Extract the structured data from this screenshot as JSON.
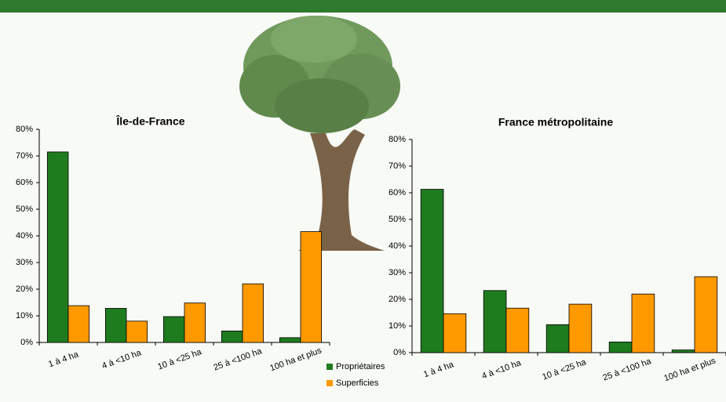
{
  "chart_data": [
    {
      "type": "bar",
      "title": "Île-de-France",
      "categories": [
        "1 à 4 ha",
        "4 à <10 ha",
        "10 à <25 ha",
        "25 à <100 ha",
        "100 ha et plus"
      ],
      "series": [
        {
          "name": "Propriétaires",
          "color": "#1e7b1e",
          "values": [
            71.5,
            12.8,
            9.7,
            4.3,
            1.8
          ]
        },
        {
          "name": "Superficies",
          "color": "#ff9900",
          "values": [
            13.8,
            8.0,
            14.8,
            22.0,
            41.6
          ]
        }
      ],
      "ylim": [
        0,
        80
      ],
      "yticks": [
        {
          "value": 0,
          "label": "0%"
        },
        {
          "value": 10,
          "label": "10%"
        },
        {
          "value": 20,
          "label": "20%"
        },
        {
          "value": 30,
          "label": "30%"
        },
        {
          "value": 40,
          "label": "40%"
        },
        {
          "value": 50,
          "label": "50%"
        },
        {
          "value": 60,
          "label": "60%"
        },
        {
          "value": 70,
          "label": "70%"
        },
        {
          "value": 80,
          "label": "80%"
        }
      ]
    },
    {
      "type": "bar",
      "title": "France métropolitaine",
      "categories": [
        "1 à 4 ha",
        "4 à <10 ha",
        "10 à <25 ha",
        "25 à <100 ha",
        "100 ha et plus"
      ],
      "series": [
        {
          "name": "Propriétaires",
          "color": "#1e7b1e",
          "values": [
            61.3,
            23.3,
            10.5,
            4.0,
            1.0
          ]
        },
        {
          "name": "Superficies",
          "color": "#ff9900",
          "values": [
            14.6,
            16.7,
            18.2,
            22.0,
            28.5
          ]
        }
      ],
      "ylim": [
        0,
        80
      ],
      "yticks": [
        {
          "value": 0,
          "label": "0%"
        },
        {
          "value": 10,
          "label": "10%"
        },
        {
          "value": 20,
          "label": "20%"
        },
        {
          "value": 30,
          "label": "30%"
        },
        {
          "value": 40,
          "label": "40%"
        },
        {
          "value": 50,
          "label": "50%"
        },
        {
          "value": 60,
          "label": "60%"
        },
        {
          "value": 70,
          "label": "70%"
        },
        {
          "value": 80,
          "label": "80%"
        }
      ]
    }
  ]
}
